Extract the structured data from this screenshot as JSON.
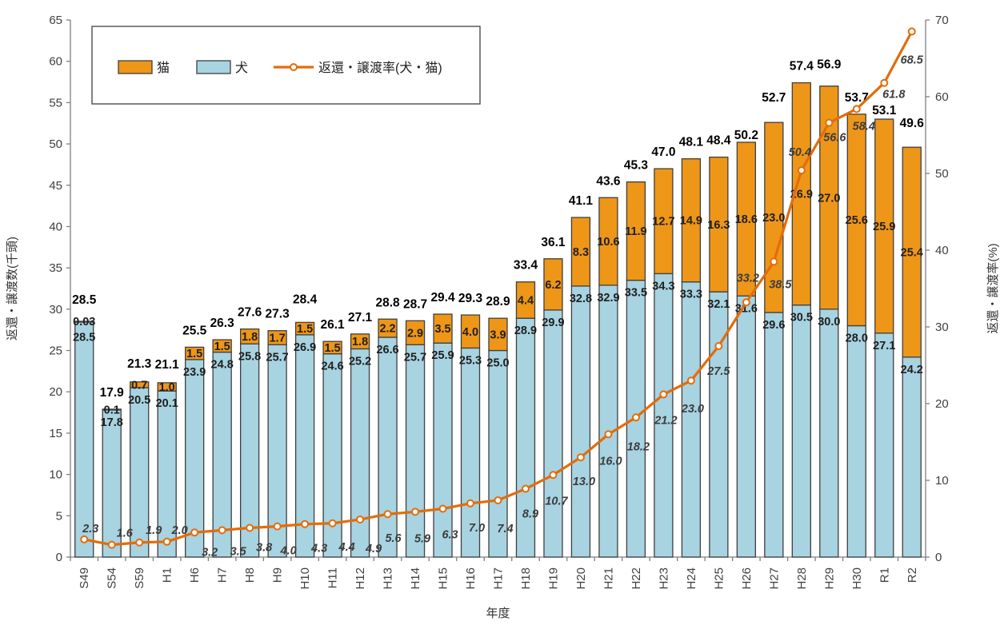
{
  "chart_data": {
    "type": "bar",
    "subtype": "stacked-bar-with-line",
    "title": "",
    "categories": [
      "S49",
      "S54",
      "S59",
      "H1",
      "H6",
      "H7",
      "H8",
      "H9",
      "H10",
      "H11",
      "H12",
      "H13",
      "H14",
      "H15",
      "H16",
      "H17",
      "H18",
      "H19",
      "H20",
      "H21",
      "H22",
      "H23",
      "H24",
      "H25",
      "H26",
      "H27",
      "H28",
      "H29",
      "H30",
      "R1",
      "R2"
    ],
    "series": [
      {
        "name": "犬",
        "type": "bar",
        "stack": "animals",
        "color": "#A8D3E1",
        "border": "#3F3F3F",
        "values": [
          28.5,
          17.8,
          20.5,
          20.1,
          23.9,
          24.8,
          25.8,
          25.7,
          26.9,
          24.6,
          25.2,
          26.6,
          25.7,
          25.9,
          25.3,
          25.0,
          28.9,
          29.9,
          32.8,
          32.9,
          33.5,
          34.3,
          33.3,
          32.1,
          31.6,
          29.6,
          30.5,
          30.0,
          28.0,
          27.1,
          24.2
        ],
        "labels": [
          "28.5",
          "17.8",
          "20.5",
          "20.1",
          "23.9",
          "24.8",
          "25.8",
          "25.7",
          "26.9",
          "24.6",
          "25.2",
          "26.6",
          "25.7",
          "25.9",
          "25.3",
          "25.0",
          "28.9",
          "29.9",
          "32.8",
          "32.9",
          "33.5",
          "34.3",
          "33.3",
          "32.1",
          "31.6",
          "29.6",
          "30.5",
          "30.0",
          "28.0",
          "27.1",
          "24.2"
        ]
      },
      {
        "name": "猫",
        "type": "bar",
        "stack": "animals",
        "color": "#EE9618",
        "border": "#3F3F3F",
        "values": [
          0.03,
          0.1,
          0.7,
          1.0,
          1.5,
          1.5,
          1.8,
          1.7,
          1.5,
          1.5,
          1.8,
          2.2,
          2.9,
          3.5,
          4.0,
          3.9,
          4.4,
          6.2,
          8.3,
          10.6,
          11.9,
          12.7,
          14.9,
          16.3,
          18.6,
          23.0,
          26.9,
          27.0,
          25.6,
          25.9,
          25.4
        ],
        "labels": [
          "0.03",
          "0.1",
          "0.7",
          "1.0",
          "1.5",
          "1.5",
          "1.8",
          "1.7",
          "1.5",
          "1.5",
          "1.8",
          "2.2",
          "2.9",
          "3.5",
          "4.0",
          "3.9",
          "4.4",
          "6.2",
          "8.3",
          "10.6",
          "11.9",
          "12.7",
          "14.9",
          "16.3",
          "18.6",
          "23.0",
          "26.9",
          "27.0",
          "25.6",
          "25.9",
          "25.4"
        ]
      },
      {
        "name": "返還・譲渡率(犬・猫)",
        "type": "line",
        "axis": "right",
        "color": "#E36C0A",
        "marker": "open-circle",
        "values": [
          2.3,
          1.6,
          1.9,
          2.0,
          3.2,
          3.5,
          3.8,
          4.0,
          4.3,
          4.4,
          4.9,
          5.6,
          5.9,
          6.3,
          7.0,
          7.4,
          8.9,
          10.7,
          13.0,
          16.0,
          18.2,
          21.2,
          23.0,
          27.5,
          33.2,
          38.5,
          50.4,
          56.6,
          58.4,
          61.8,
          68.5
        ],
        "labels": [
          "2.3",
          "1.6",
          "1.9",
          "2.0",
          "3.2",
          "3.5",
          "3.8",
          "4.0",
          "4.3",
          "4.4",
          "4.9",
          "5.6",
          "5.9",
          "6.3",
          "7.0",
          "7.4",
          "8.9",
          "10.7",
          "13.0",
          "16.0",
          "18.2",
          "21.2",
          "23.0",
          "27.5",
          "33.2",
          "38.5",
          "50.4",
          "56.6",
          "58.4",
          "61.8",
          "68.5"
        ]
      }
    ],
    "totals": {
      "values": [
        28.5,
        17.9,
        21.3,
        21.1,
        25.5,
        26.3,
        27.6,
        27.3,
        28.4,
        26.1,
        27.1,
        28.8,
        28.7,
        29.4,
        29.3,
        28.9,
        33.4,
        36.1,
        41.1,
        43.6,
        45.3,
        47.0,
        48.1,
        48.4,
        50.2,
        52.7,
        57.4,
        56.9,
        53.7,
        53.1,
        49.6
      ],
      "labels": [
        "28.5",
        "17.9",
        "21.3",
        "21.1",
        "25.5",
        "26.3",
        "27.6",
        "27.3",
        "28.4",
        "26.1",
        "27.1",
        "28.8",
        "28.7",
        "29.4",
        "29.3",
        "28.9",
        "33.4",
        "36.1",
        "41.1",
        "43.6",
        "45.3",
        "47.0",
        "48.1",
        "48.4",
        "50.2",
        "52.7",
        "57.4",
        "56.9",
        "53.7",
        "53.1",
        "49.6"
      ]
    },
    "left_axis": {
      "title": "返還・譲渡数(千頭)",
      "min": 0,
      "max": 65,
      "step": 5,
      "ticks": [
        "0",
        "5",
        "10",
        "15",
        "20",
        "25",
        "30",
        "35",
        "40",
        "45",
        "50",
        "55",
        "60",
        "65"
      ]
    },
    "right_axis": {
      "title": "返還・譲渡率(%)",
      "min": 0,
      "max": 70,
      "step": 10,
      "ticks": [
        "0",
        "10",
        "20",
        "30",
        "40",
        "50",
        "60",
        "70"
      ]
    },
    "x_axis": {
      "title": "年度"
    },
    "legend": {
      "position": "top-left",
      "items": [
        "猫",
        "犬",
        "返還・譲渡率(犬・猫)"
      ]
    },
    "grid": false
  },
  "colors": {
    "cat_bar": "#EE9618",
    "dog_bar": "#A8D3E1",
    "bar_border": "#3F3F3F",
    "rate_line": "#E36C0A",
    "axis": "#7F7F7F",
    "background": "#FFFFFF"
  }
}
